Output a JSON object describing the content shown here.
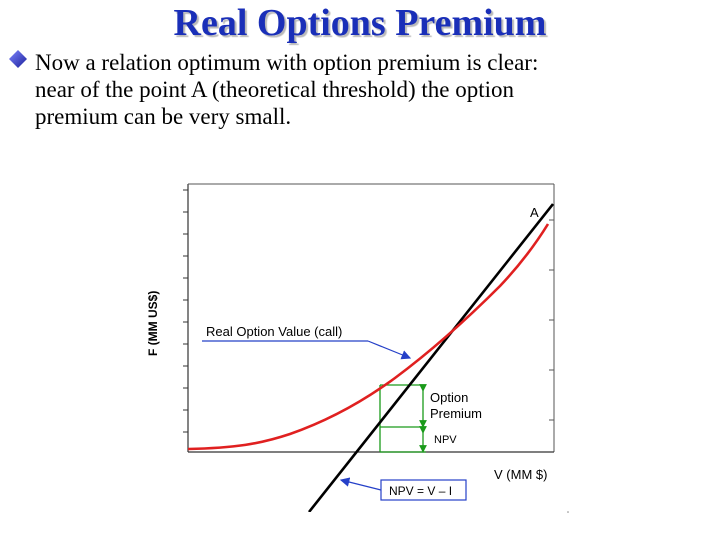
{
  "slide": {
    "title": "Real Options Premium",
    "bullet_lines": [
      "Now a relation optimum with option premium is clear:",
      "near of the point A (theoretical threshold) the option",
      "premium can be very small."
    ],
    "bullet_icon": "diamond-bullet-icon"
  },
  "diagram": {
    "y_axis_label": "F (MM US$)",
    "x_axis_label": "V (MM $)",
    "point_label": "A",
    "curve_label": "Real Option Value (call)",
    "premium_label_line1": "Option",
    "premium_label_line2": "Premium",
    "npv_bracket_label": "NPV",
    "npv_line_label": "NPV = V – I",
    "colors": {
      "title": "#1a2fb8",
      "bullet": "#2b2fc2",
      "option_curve": "#e02020",
      "npv_line": "#000000",
      "premium_box": "#1a9a1a",
      "callout_box": "#2540c8"
    }
  }
}
